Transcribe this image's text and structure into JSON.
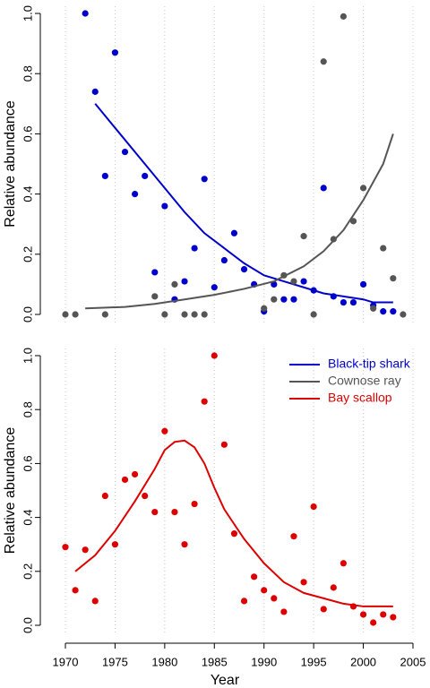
{
  "chart_data": [
    {
      "type": "scatter",
      "ylabel": "Relative abundance",
      "xlim": [
        1970,
        2005
      ],
      "xticks": [
        1970,
        1975,
        1980,
        1985,
        1990,
        1995,
        2000,
        2005
      ],
      "ylim": [
        0,
        1
      ],
      "yticks": [
        {
          "value": 0,
          "label": "0.0"
        },
        0.2,
        0.4,
        0.6,
        0.8,
        {
          "value": 1,
          "label": "1.0"
        }
      ],
      "grid": true,
      "series": [
        {
          "name": "Black-tip shark",
          "color": "#0000cc",
          "x": [
            1972,
            1973,
            1974,
            1975,
            1976,
            1977,
            1978,
            1979,
            1980,
            1981,
            1982,
            1983,
            1984,
            1985,
            1986,
            1987,
            1988,
            1989,
            1990,
            1991,
            1992,
            1993,
            1994,
            1995,
            1996,
            1997,
            1998,
            1999,
            2000,
            2001,
            2002,
            2003
          ],
          "values": [
            1.0,
            0.74,
            0.46,
            0.87,
            0.54,
            0.4,
            0.46,
            0.14,
            0.36,
            0.05,
            0.11,
            0.22,
            0.45,
            0.09,
            0.18,
            0.27,
            0.15,
            0.1,
            0.01,
            0.1,
            0.05,
            0.05,
            0.11,
            0.08,
            0.42,
            0.06,
            0.04,
            0.04,
            0.1,
            0.03,
            0.01,
            0.01
          ],
          "fit_x": [
            1973,
            1975,
            1978,
            1980,
            1982,
            1984,
            1986,
            1988,
            1990,
            1992,
            1994,
            1996,
            1998,
            2000,
            2001,
            2003
          ],
          "fit_values": [
            0.7,
            0.62,
            0.5,
            0.42,
            0.34,
            0.27,
            0.22,
            0.17,
            0.13,
            0.11,
            0.09,
            0.07,
            0.06,
            0.05,
            0.04,
            0.04
          ]
        },
        {
          "name": "Cownose ray",
          "color": "#555555",
          "x": [
            1970,
            1971,
            1974,
            1979,
            1980,
            1981,
            1982,
            1983,
            1984,
            1990,
            1991,
            1992,
            1993,
            1994,
            1995,
            1996,
            1997,
            1998,
            1999,
            2000,
            2001,
            2002,
            2003,
            2004
          ],
          "values": [
            0,
            0,
            0,
            0.06,
            0,
            0.1,
            0,
            0,
            0,
            0.02,
            0.05,
            0.13,
            0.11,
            0.26,
            0,
            0.84,
            0.25,
            0.99,
            0.31,
            0.42,
            0.02,
            0.22,
            0.12,
            0
          ],
          "fit_x": [
            1972,
            1976,
            1979,
            1982,
            1985,
            1988,
            1991,
            1994,
            1996,
            1998,
            2000,
            2002,
            2003
          ],
          "fit_values": [
            0.02,
            0.025,
            0.035,
            0.05,
            0.065,
            0.085,
            0.11,
            0.16,
            0.21,
            0.28,
            0.38,
            0.5,
            0.6
          ]
        }
      ]
    },
    {
      "type": "scatter",
      "ylabel": "Relative abundance",
      "xlabel": "Year",
      "xlim": [
        1970,
        2005
      ],
      "xticks": [
        1970,
        1975,
        1980,
        1985,
        1990,
        1995,
        2000,
        2005
      ],
      "ylim": [
        0,
        1
      ],
      "yticks": [
        {
          "value": 0,
          "label": "0.0"
        },
        0.2,
        0.4,
        0.6,
        0.8,
        {
          "value": 1,
          "label": "1.0"
        }
      ],
      "grid": true,
      "legend": "topright",
      "series": [
        {
          "name": "Bay scallop",
          "color": "#dd0000",
          "x": [
            1970,
            1971,
            1972,
            1973,
            1974,
            1975,
            1976,
            1977,
            1978,
            1979,
            1980,
            1981,
            1982,
            1983,
            1984,
            1985,
            1986,
            1987,
            1988,
            1989,
            1990,
            1991,
            1992,
            1993,
            1994,
            1995,
            1996,
            1997,
            1998,
            1999,
            2000,
            2001,
            2002,
            2003
          ],
          "values": [
            0.29,
            0.13,
            0.28,
            0.09,
            0.48,
            0.3,
            0.54,
            0.56,
            0.48,
            0.42,
            0.72,
            0.42,
            0.3,
            0.45,
            0.83,
            1.0,
            0.67,
            0.34,
            0.09,
            0.18,
            0.13,
            0.1,
            0.05,
            0.33,
            0.16,
            0.44,
            0.06,
            0.14,
            0.23,
            0.07,
            0.04,
            0.01,
            0.04,
            0.03
          ],
          "fit_x": [
            1971,
            1973,
            1975,
            1977,
            1979,
            1980,
            1981,
            1982,
            1983,
            1984,
            1985,
            1986,
            1988,
            1990,
            1992,
            1994,
            1996,
            1998,
            2000,
            2003
          ],
          "fit_values": [
            0.2,
            0.26,
            0.35,
            0.46,
            0.58,
            0.65,
            0.68,
            0.685,
            0.66,
            0.6,
            0.51,
            0.43,
            0.32,
            0.23,
            0.16,
            0.12,
            0.1,
            0.08,
            0.07,
            0.07
          ]
        }
      ]
    }
  ]
}
